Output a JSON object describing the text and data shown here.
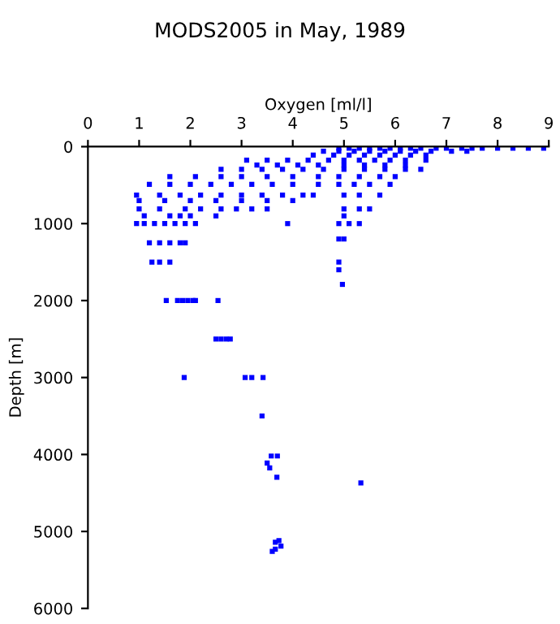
{
  "chart_data": {
    "type": "scatter",
    "title": "MODS2005 in May, 1989",
    "xlabel": "Oxygen [ml/l]",
    "ylabel": "Depth [m]",
    "xlim": [
      0,
      9
    ],
    "xticks": [
      0,
      1,
      2,
      3,
      4,
      5,
      6,
      7,
      8,
      9
    ],
    "ylim": [
      6000,
      0
    ],
    "yticks": [
      0,
      1000,
      2000,
      3000,
      4000,
      5000,
      6000
    ],
    "grid": false,
    "marker": "square",
    "series": [
      {
        "color": "#0000ff",
        "x": [
          4.9,
          5.1,
          5.3,
          5.5,
          5.7,
          5.9,
          6.1,
          6.3,
          6.5,
          6.8,
          7.0,
          7.3,
          7.5,
          7.7,
          8.0,
          8.3,
          8.6,
          8.9,
          4.6,
          4.9,
          5.2,
          5.5,
          5.8,
          6.1,
          6.4,
          6.7,
          7.1,
          7.4,
          4.4,
          4.8,
          5.1,
          5.4,
          5.7,
          6.0,
          6.3,
          6.6,
          3.1,
          3.5,
          3.9,
          4.3,
          4.7,
          5.0,
          5.3,
          5.6,
          5.9,
          6.2,
          6.6,
          3.3,
          3.7,
          4.1,
          4.5,
          5.0,
          5.4,
          5.8,
          6.2,
          2.6,
          3.0,
          3.4,
          3.8,
          4.2,
          4.6,
          5.0,
          5.4,
          5.8,
          6.2,
          6.5,
          1.6,
          2.1,
          2.6,
          3.0,
          3.5,
          4.0,
          4.5,
          4.9,
          5.3,
          5.7,
          6.0,
          1.2,
          1.6,
          2.0,
          2.4,
          2.8,
          3.2,
          3.6,
          4.0,
          4.5,
          4.9,
          5.2,
          5.5,
          5.9,
          0.95,
          1.4,
          1.8,
          2.2,
          2.6,
          3.0,
          3.4,
          3.8,
          4.2,
          4.4,
          5.0,
          5.3,
          5.7,
          1.0,
          1.5,
          2.0,
          2.5,
          3.0,
          3.5,
          4.0,
          1.0,
          1.4,
          1.9,
          2.2,
          2.6,
          2.9,
          3.2,
          3.5,
          5.0,
          5.3,
          5.5,
          1.1,
          1.6,
          1.8,
          2.0,
          2.5,
          5.0,
          0.95,
          1.1,
          1.3,
          1.5,
          1.7,
          1.9,
          2.1,
          3.9,
          4.9,
          5.1,
          5.3,
          4.9,
          5.0,
          1.2,
          1.4,
          1.6,
          1.8,
          1.9,
          1.25,
          1.4,
          1.6,
          4.9,
          4.9,
          4.97,
          1.53,
          1.75,
          1.85,
          1.95,
          2.05,
          2.1,
          2.54,
          2.5,
          2.6,
          2.7,
          2.78,
          1.88,
          3.07,
          3.2,
          3.42,
          3.4,
          3.58,
          3.7,
          3.5,
          3.55,
          3.69,
          5.33,
          3.73,
          3.66,
          3.77,
          3.66,
          3.6
        ],
        "values": [
          20,
          20,
          20,
          20,
          20,
          20,
          20,
          20,
          20,
          20,
          20,
          20,
          20,
          20,
          20,
          20,
          20,
          20,
          60,
          60,
          60,
          60,
          60,
          60,
          60,
          60,
          60,
          60,
          110,
          110,
          110,
          110,
          110,
          110,
          110,
          110,
          175,
          175,
          175,
          175,
          175,
          175,
          175,
          175,
          175,
          175,
          175,
          240,
          240,
          240,
          240,
          240,
          240,
          240,
          240,
          295,
          295,
          295,
          295,
          295,
          295,
          295,
          295,
          295,
          295,
          295,
          390,
          390,
          390,
          390,
          390,
          390,
          390,
          390,
          390,
          390,
          390,
          490,
          490,
          490,
          490,
          490,
          490,
          490,
          490,
          490,
          490,
          490,
          490,
          490,
          630,
          630,
          630,
          630,
          630,
          630,
          630,
          630,
          630,
          630,
          630,
          630,
          630,
          700,
          700,
          700,
          700,
          700,
          700,
          700,
          810,
          810,
          810,
          810,
          810,
          810,
          810,
          810,
          810,
          810,
          810,
          900,
          900,
          900,
          900,
          900,
          900,
          1000,
          1000,
          1000,
          1000,
          1000,
          1000,
          1000,
          1000,
          1000,
          1000,
          1000,
          1200,
          1200,
          1250,
          1250,
          1250,
          1250,
          1250,
          1500,
          1500,
          1500,
          1500,
          1600,
          1790,
          2000,
          2000,
          2000,
          2000,
          2000,
          2000,
          2000,
          2500,
          2500,
          2500,
          2500,
          3000,
          3000,
          3000,
          3000,
          3500,
          4020,
          4020,
          4110,
          4175,
          4295,
          4370,
          5120,
          5140,
          5190,
          5230,
          5260
        ]
      }
    ]
  }
}
